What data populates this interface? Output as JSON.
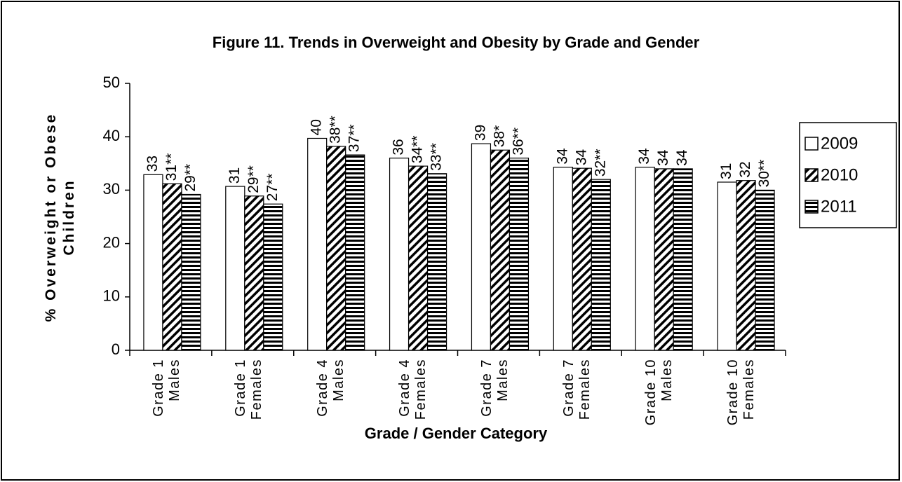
{
  "chart_data": {
    "type": "bar",
    "title": "Figure 11. Trends in Overweight and Obesity by Grade and Gender",
    "xlabel": "Grade / Gender Category",
    "ylabel": "% Overweight or Obese Children",
    "categories": [
      "Grade 1 Males",
      "Grade 1 Females",
      "Grade 4 Males",
      "Grade 4 Females",
      "Grade 7 Males",
      "Grade 7 Females",
      "Grade 10 Males",
      "Grade 10 Females"
    ],
    "series": [
      {
        "name": "2009",
        "color": "#ffffff",
        "pattern": "none",
        "values": [
          32.9,
          30.7,
          39.7,
          36.0,
          38.7,
          34.3,
          34.3,
          31.5
        ],
        "value_labels": [
          "33",
          "31",
          "40",
          "36",
          "39",
          "34",
          "34",
          "31"
        ]
      },
      {
        "name": "2010",
        "color": "#000000",
        "pattern": "diagonal",
        "values": [
          31.2,
          28.9,
          38.2,
          34.5,
          37.5,
          34.1,
          34.0,
          31.8
        ],
        "value_labels": [
          "31**",
          "29**",
          "38**",
          "34**",
          "38*",
          "34",
          "34",
          "32"
        ]
      },
      {
        "name": "2011",
        "color": "#000000",
        "pattern": "horizontal",
        "values": [
          29.2,
          27.4,
          36.6,
          33.1,
          36.0,
          32.0,
          34.0,
          30.0
        ],
        "value_labels": [
          "29**",
          "27**",
          "37**",
          "33**",
          "36**",
          "32**",
          "34",
          "30**"
        ]
      }
    ],
    "ylim": [
      0,
      50
    ],
    "yticks": [
      0,
      10,
      20,
      30,
      40,
      50
    ],
    "grid": false,
    "legend": "right"
  }
}
